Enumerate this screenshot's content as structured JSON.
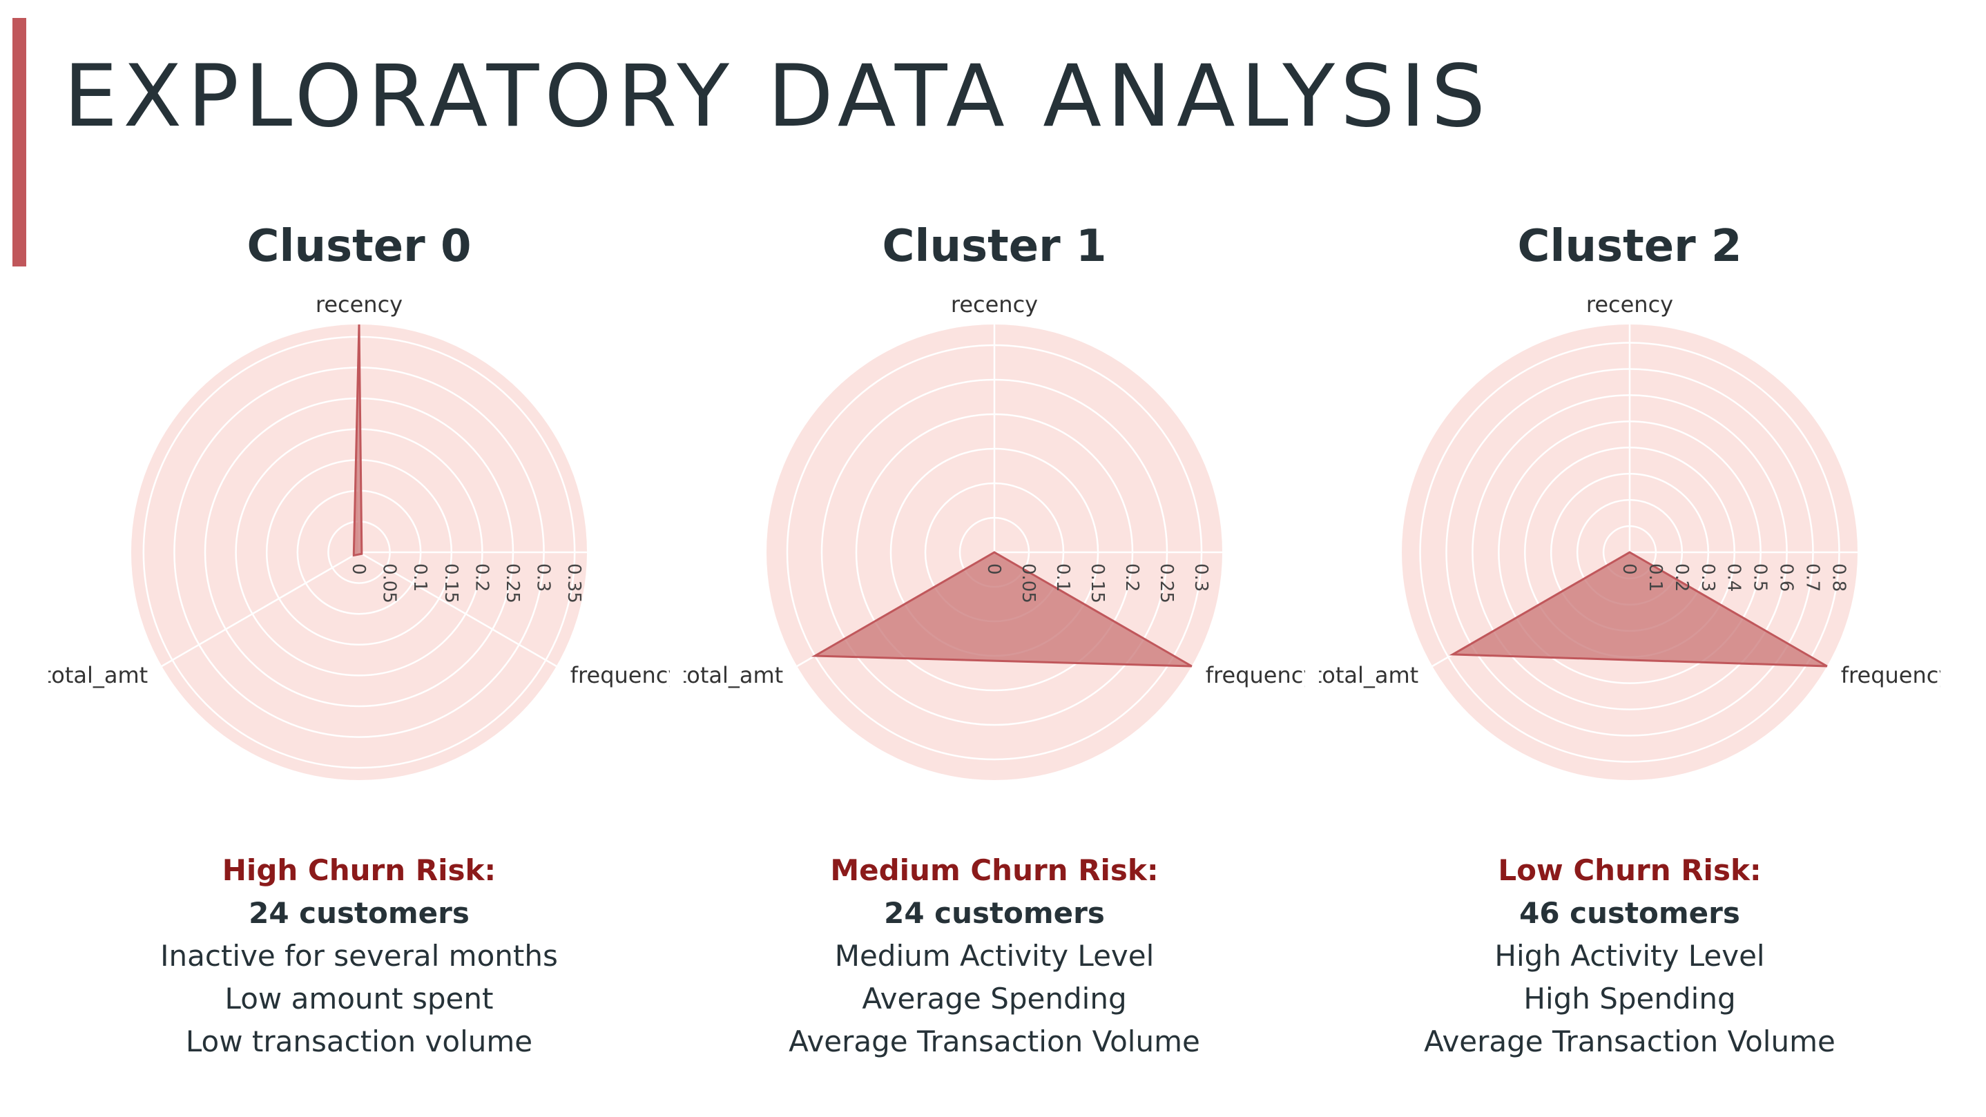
{
  "page": {
    "title": "EXPLORATORY DATA ANALYSIS"
  },
  "colors": {
    "accent": "#c0575b",
    "risk_text": "#8b1a1a",
    "radar_bg": "#fbe3e0",
    "fill": "#c97575",
    "stroke": "#c0575b"
  },
  "chart_data": [
    {
      "type": "radar",
      "title": "Cluster 0",
      "axes": [
        "recency",
        "frequency",
        "total_amt"
      ],
      "ticks": [
        "0",
        "0.05",
        "0.1",
        "0.15",
        "0.2",
        "0.25",
        "0.3",
        "0.35"
      ],
      "rmax": 0.37,
      "values": [
        0.37,
        0.005,
        0.01
      ],
      "grid": true
    },
    {
      "type": "radar",
      "title": "Cluster 1",
      "axes": [
        "recency",
        "frequency",
        "total_amt"
      ],
      "ticks": [
        "0",
        "0.05",
        "0.1",
        "0.15",
        "0.2",
        "0.25",
        "0.3"
      ],
      "rmax": 0.33,
      "values": [
        0.0,
        0.33,
        0.3
      ],
      "grid": true
    },
    {
      "type": "radar",
      "title": "Cluster 2",
      "axes": [
        "recency",
        "frequency",
        "total_amt"
      ],
      "ticks": [
        "0",
        "0.1",
        "0.2",
        "0.3",
        "0.4",
        "0.5",
        "0.6",
        "0.7",
        "0.8"
      ],
      "rmax": 0.87,
      "values": [
        0.0,
        0.87,
        0.78
      ],
      "grid": true
    }
  ],
  "clusters": [
    {
      "title": "Cluster 0",
      "risk": "High Churn Risk:",
      "count": "24 customers",
      "lines": [
        "Inactive for several months",
        "Low amount spent",
        "Low transaction volume"
      ]
    },
    {
      "title": "Cluster 1",
      "risk": "Medium Churn Risk:",
      "count": "24 customers",
      "lines": [
        "Medium Activity Level",
        "Average Spending",
        "Average Transaction Volume"
      ]
    },
    {
      "title": "Cluster 2",
      "risk": "Low Churn Risk:",
      "count": "46 customers",
      "lines": [
        "High Activity Level",
        "High Spending",
        "Average Transaction Volume"
      ]
    }
  ]
}
